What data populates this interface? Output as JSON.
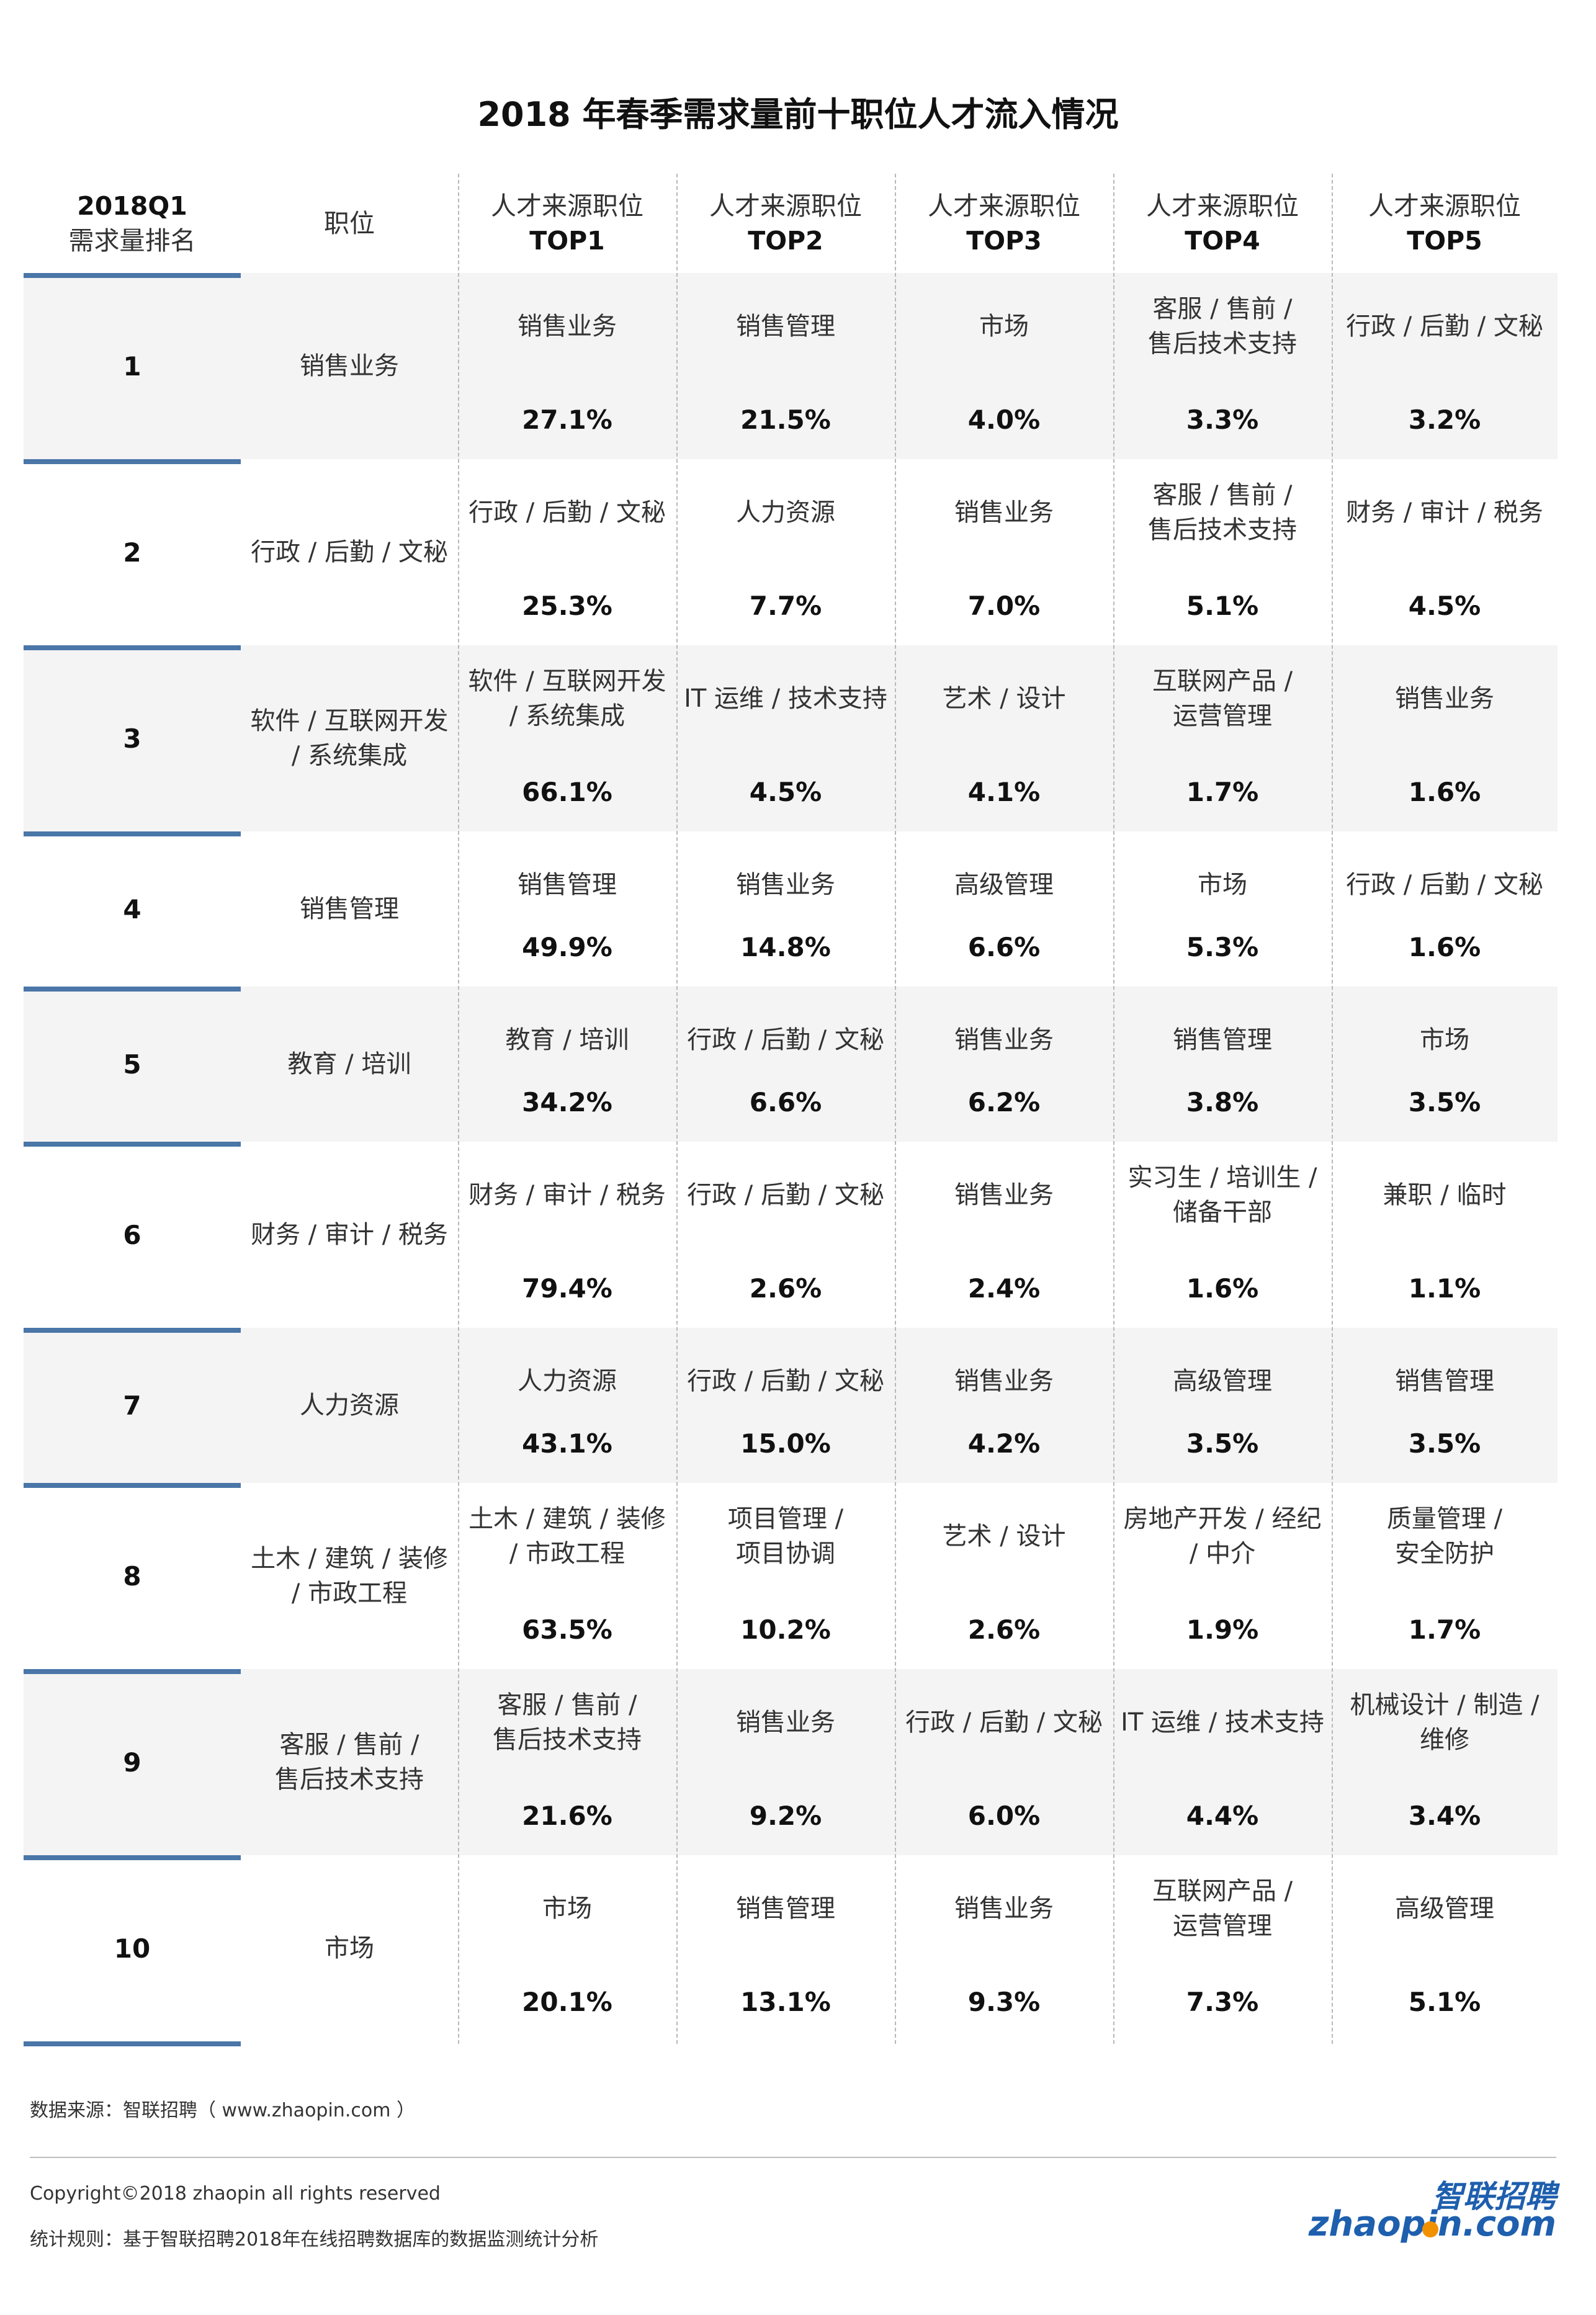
{
  "title": "2018 年春季需求量前十职位人才流入情况",
  "headers": [
    {
      "l1": "2018Q1",
      "l2": "需求量排名"
    },
    {
      "l1": "职位",
      "l2": ""
    },
    {
      "l1": "人才来源职位",
      "l2": "TOP1"
    },
    {
      "l1": "人才来源职位",
      "l2": "TOP2"
    },
    {
      "l1": "人才来源职位",
      "l2": "TOP3"
    },
    {
      "l1": "人才来源职位",
      "l2": "TOP4"
    },
    {
      "l1": "人才来源职位",
      "l2": "TOP5"
    }
  ],
  "rows": [
    {
      "rank": "1",
      "role": [
        "销售业务"
      ],
      "sources": [
        {
          "name": [
            "销售业务"
          ],
          "pct": "27.1%"
        },
        {
          "name": [
            "销售管理"
          ],
          "pct": "21.5%"
        },
        {
          "name": [
            "市场"
          ],
          "pct": "4.0%"
        },
        {
          "name": [
            "客服 / 售前 /",
            "售后技术支持"
          ],
          "pct": "3.3%"
        },
        {
          "name": [
            "行政 / 后勤 / 文秘"
          ],
          "pct": "3.2%"
        }
      ]
    },
    {
      "rank": "2",
      "role": [
        "行政 / 后勤 / 文秘"
      ],
      "sources": [
        {
          "name": [
            "行政 / 后勤 / 文秘"
          ],
          "pct": "25.3%"
        },
        {
          "name": [
            "人力资源"
          ],
          "pct": "7.7%"
        },
        {
          "name": [
            "销售业务"
          ],
          "pct": "7.0%"
        },
        {
          "name": [
            "客服 / 售前 /",
            "售后技术支持"
          ],
          "pct": "5.1%"
        },
        {
          "name": [
            "财务 / 审计 / 税务"
          ],
          "pct": "4.5%"
        }
      ]
    },
    {
      "rank": "3",
      "role": [
        "软件 / 互联网开发",
        "/ 系统集成"
      ],
      "sources": [
        {
          "name": [
            "软件 / 互联网开发",
            "/ 系统集成"
          ],
          "pct": "66.1%"
        },
        {
          "name": [
            "IT 运维 / 技术支持"
          ],
          "pct": "4.5%"
        },
        {
          "name": [
            "艺术 / 设计"
          ],
          "pct": "4.1%"
        },
        {
          "name": [
            "互联网产品 /",
            "运营管理"
          ],
          "pct": "1.7%"
        },
        {
          "name": [
            "销售业务"
          ],
          "pct": "1.6%"
        }
      ]
    },
    {
      "rank": "4",
      "role": [
        "销售管理"
      ],
      "sources": [
        {
          "name": [
            "销售管理"
          ],
          "pct": "49.9%"
        },
        {
          "name": [
            "销售业务"
          ],
          "pct": "14.8%"
        },
        {
          "name": [
            "高级管理"
          ],
          "pct": "6.6%"
        },
        {
          "name": [
            "市场"
          ],
          "pct": "5.3%"
        },
        {
          "name": [
            "行政 / 后勤 / 文秘"
          ],
          "pct": "1.6%"
        }
      ]
    },
    {
      "rank": "5",
      "role": [
        "教育 / 培训"
      ],
      "sources": [
        {
          "name": [
            "教育 / 培训"
          ],
          "pct": "34.2%"
        },
        {
          "name": [
            "行政 / 后勤 / 文秘"
          ],
          "pct": "6.6%"
        },
        {
          "name": [
            "销售业务"
          ],
          "pct": "6.2%"
        },
        {
          "name": [
            "销售管理"
          ],
          "pct": "3.8%"
        },
        {
          "name": [
            "市场"
          ],
          "pct": "3.5%"
        }
      ]
    },
    {
      "rank": "6",
      "role": [
        "财务 / 审计 / 税务"
      ],
      "sources": [
        {
          "name": [
            "财务 / 审计 / 税务"
          ],
          "pct": "79.4%"
        },
        {
          "name": [
            "行政 / 后勤 / 文秘"
          ],
          "pct": "2.6%"
        },
        {
          "name": [
            "销售业务"
          ],
          "pct": "2.4%"
        },
        {
          "name": [
            "实习生 / 培训生 /",
            "储备干部"
          ],
          "pct": "1.6%"
        },
        {
          "name": [
            "兼职 / 临时"
          ],
          "pct": "1.1%"
        }
      ]
    },
    {
      "rank": "7",
      "role": [
        "人力资源"
      ],
      "sources": [
        {
          "name": [
            "人力资源"
          ],
          "pct": "43.1%"
        },
        {
          "name": [
            "行政 / 后勤 / 文秘"
          ],
          "pct": "15.0%"
        },
        {
          "name": [
            "销售业务"
          ],
          "pct": "4.2%"
        },
        {
          "name": [
            "高级管理"
          ],
          "pct": "3.5%"
        },
        {
          "name": [
            "销售管理"
          ],
          "pct": "3.5%"
        }
      ]
    },
    {
      "rank": "8",
      "role": [
        "土木 / 建筑 / 装修",
        "/ 市政工程"
      ],
      "sources": [
        {
          "name": [
            "土木 / 建筑 / 装修",
            "/ 市政工程"
          ],
          "pct": "63.5%"
        },
        {
          "name": [
            "项目管理 /",
            "项目协调"
          ],
          "pct": "10.2%"
        },
        {
          "name": [
            "艺术 / 设计"
          ],
          "pct": "2.6%"
        },
        {
          "name": [
            "房地产开发 / 经纪",
            "/ 中介"
          ],
          "pct": "1.9%"
        },
        {
          "name": [
            "质量管理 /",
            "安全防护"
          ],
          "pct": "1.7%"
        }
      ]
    },
    {
      "rank": "9",
      "role": [
        "客服 / 售前 /",
        "售后技术支持"
      ],
      "sources": [
        {
          "name": [
            "客服 / 售前 /",
            "售后技术支持"
          ],
          "pct": "21.6%"
        },
        {
          "name": [
            "销售业务"
          ],
          "pct": "9.2%"
        },
        {
          "name": [
            "行政 / 后勤 / 文秘"
          ],
          "pct": "6.0%"
        },
        {
          "name": [
            "IT 运维 / 技术支持"
          ],
          "pct": "4.4%"
        },
        {
          "name": [
            "机械设计 / 制造 /",
            "维修"
          ],
          "pct": "3.4%"
        }
      ]
    },
    {
      "rank": "10",
      "role": [
        "市场"
      ],
      "sources": [
        {
          "name": [
            "市场"
          ],
          "pct": "20.1%"
        },
        {
          "name": [
            "销售管理"
          ],
          "pct": "13.1%"
        },
        {
          "name": [
            "销售业务"
          ],
          "pct": "9.3%"
        },
        {
          "name": [
            "互联网产品 /",
            "运营管理"
          ],
          "pct": "7.3%"
        },
        {
          "name": [
            "高级管理"
          ],
          "pct": "5.1%"
        }
      ]
    }
  ],
  "footer": {
    "source": "数据来源：智联招聘（ www.zhaopin.com ）",
    "copyright": "Copyright©2018 zhaopin all rights reserved",
    "rule": "统计规则：基于智联招聘2018年在线招聘数据库的数据监测统计分析",
    "logo_cn": "智联招聘",
    "logo_en": "zhaopin.com"
  },
  "colors": {
    "accent_bar": "#4a76a8",
    "row_shade": "#f4f4f4",
    "logo": "#1e5fae",
    "logo_dot": "#f29100"
  }
}
